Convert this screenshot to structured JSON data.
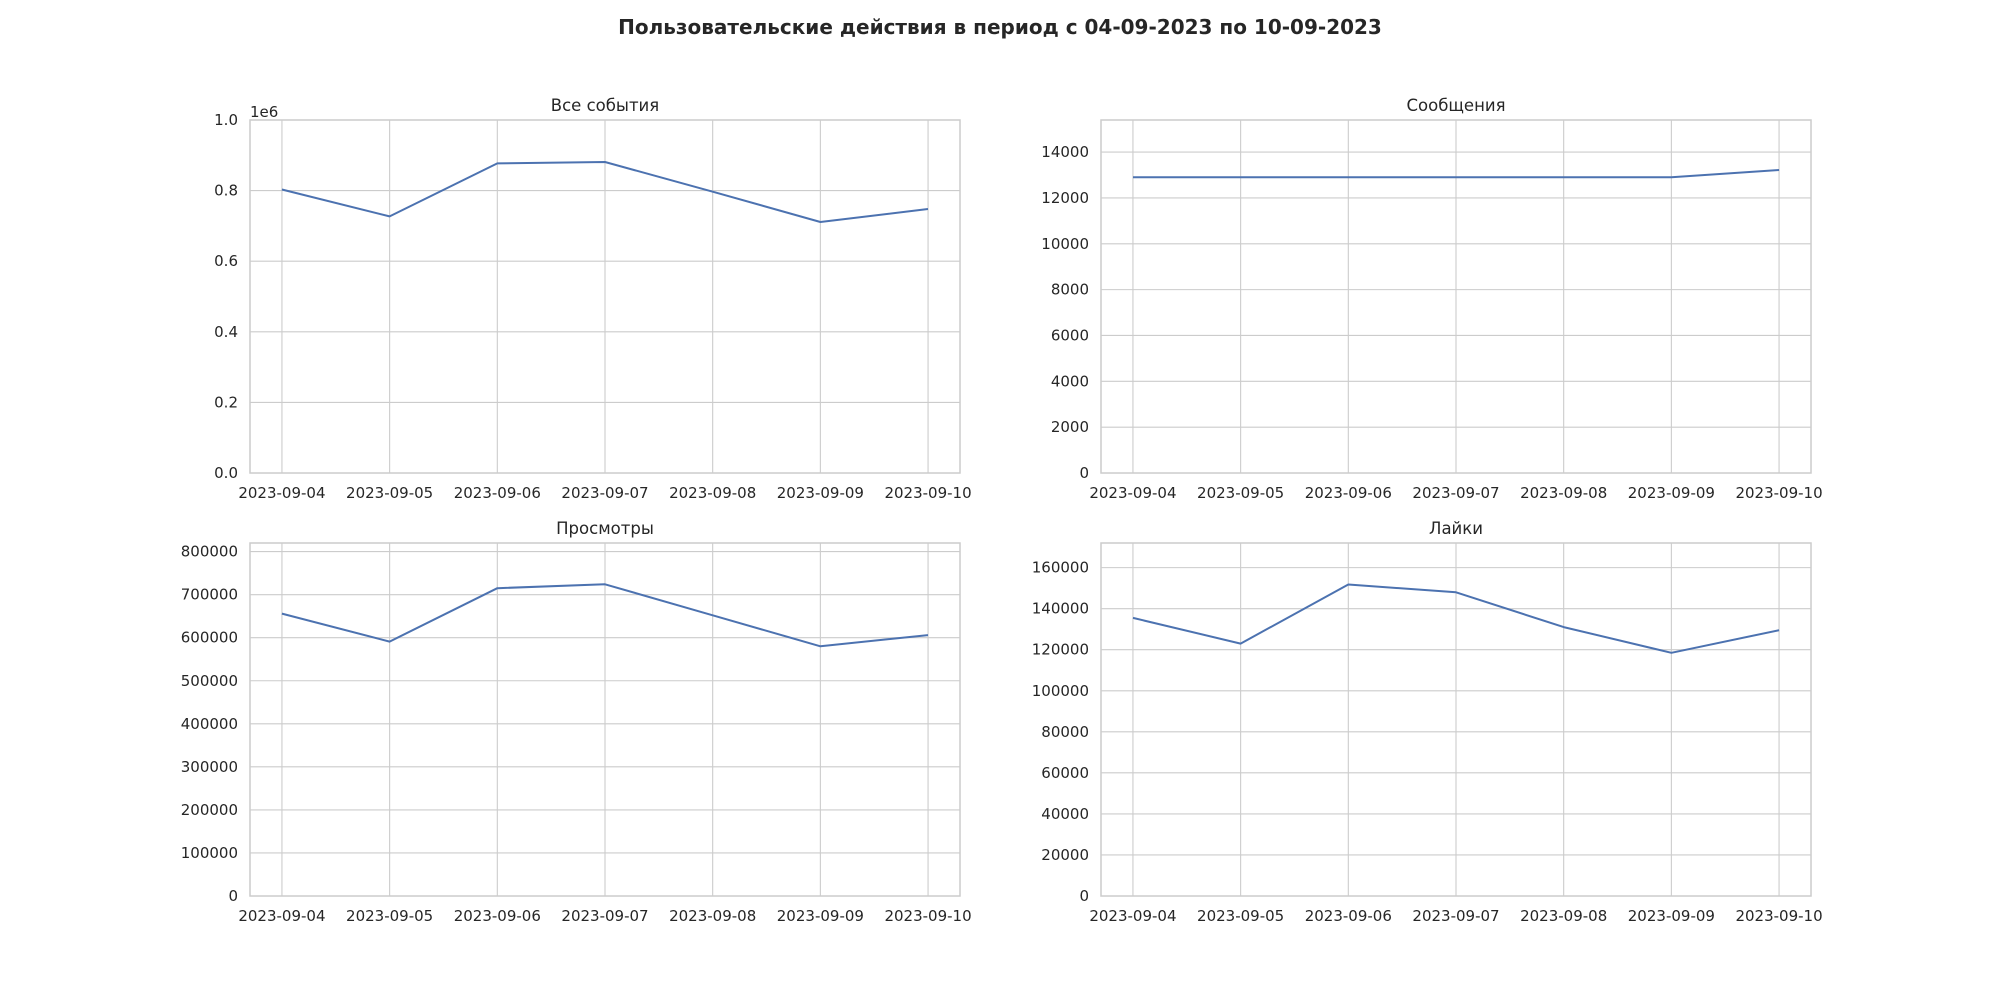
{
  "figure": {
    "title": "Пользовательские действия в период с 04-09-2023 по 10-09-2023"
  },
  "chart_data": [
    {
      "type": "line",
      "title": "Все события",
      "x": [
        "2023-09-04",
        "2023-09-05",
        "2023-09-06",
        "2023-09-07",
        "2023-09-08",
        "2023-09-09",
        "2023-09-10"
      ],
      "series": [
        {
          "values": [
            803000,
            727000,
            877000,
            881000,
            797000,
            711000,
            748000
          ]
        }
      ],
      "ylim": [
        0,
        1000000
      ],
      "yticks": [
        0,
        200000,
        400000,
        600000,
        800000,
        1000000
      ],
      "ytick_labels": [
        "0.0",
        "0.2",
        "0.4",
        "0.6",
        "0.8",
        "1.0"
      ],
      "offset_text": "1e6",
      "grid": true,
      "color": "#4c72b0"
    },
    {
      "type": "line",
      "title": "Сообщения",
      "x": [
        "2023-09-04",
        "2023-09-05",
        "2023-09-06",
        "2023-09-07",
        "2023-09-08",
        "2023-09-09",
        "2023-09-10"
      ],
      "series": [
        {
          "values": [
            12900,
            12900,
            12900,
            12900,
            12900,
            12900,
            13220
          ]
        }
      ],
      "ylim": [
        0,
        15400
      ],
      "yticks": [
        0,
        2000,
        4000,
        6000,
        8000,
        10000,
        12000,
        14000
      ],
      "ytick_labels": [
        "0",
        "2000",
        "4000",
        "6000",
        "8000",
        "10000",
        "12000",
        "14000"
      ],
      "offset_text": "",
      "grid": true,
      "color": "#4c72b0"
    },
    {
      "type": "line",
      "title": "Просмотры",
      "x": [
        "2023-09-04",
        "2023-09-05",
        "2023-09-06",
        "2023-09-07",
        "2023-09-08",
        "2023-09-09",
        "2023-09-10"
      ],
      "series": [
        {
          "values": [
            656000,
            591000,
            715000,
            724000,
            652000,
            580000,
            606000
          ]
        }
      ],
      "ylim": [
        0,
        820000
      ],
      "yticks": [
        0,
        100000,
        200000,
        300000,
        400000,
        500000,
        600000,
        700000,
        800000
      ],
      "ytick_labels": [
        "0",
        "100000",
        "200000",
        "300000",
        "400000",
        "500000",
        "600000",
        "700000",
        "800000"
      ],
      "offset_text": "",
      "grid": true,
      "color": "#4c72b0"
    },
    {
      "type": "line",
      "title": "Лайки",
      "x": [
        "2023-09-04",
        "2023-09-05",
        "2023-09-06",
        "2023-09-07",
        "2023-09-08",
        "2023-09-09",
        "2023-09-10"
      ],
      "series": [
        {
          "values": [
            135500,
            123000,
            151800,
            148000,
            131000,
            118500,
            129500
          ]
        }
      ],
      "ylim": [
        0,
        172000
      ],
      "yticks": [
        0,
        20000,
        40000,
        60000,
        80000,
        100000,
        120000,
        140000,
        160000
      ],
      "ytick_labels": [
        "0",
        "20000",
        "40000",
        "60000",
        "80000",
        "100000",
        "120000",
        "140000",
        "160000"
      ],
      "offset_text": "",
      "grid": true,
      "color": "#4c72b0"
    }
  ]
}
